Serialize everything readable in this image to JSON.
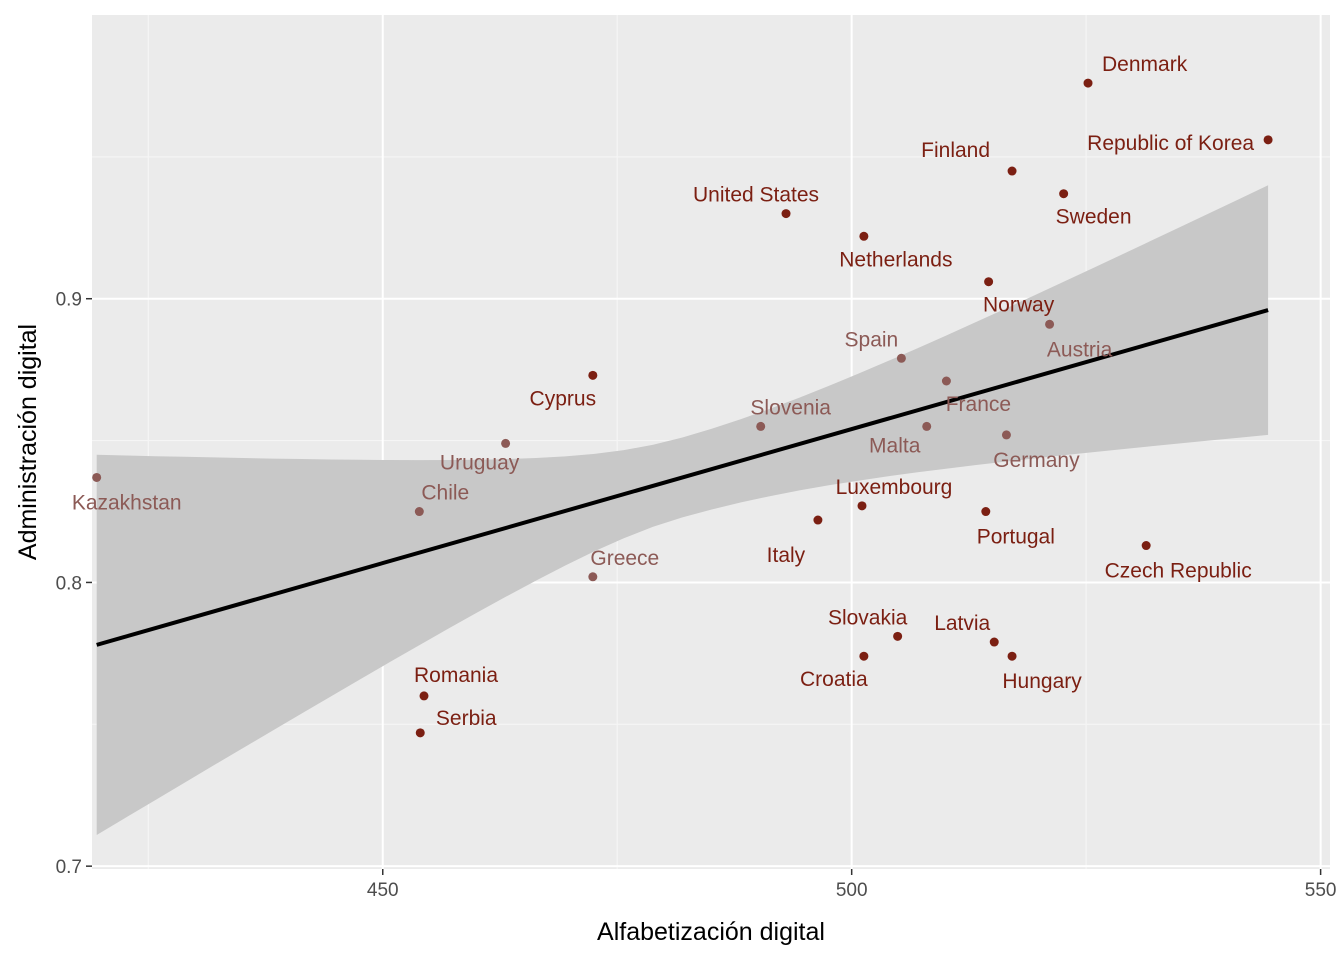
{
  "chart_data": {
    "type": "scatter",
    "title": "",
    "xlabel": "Alfabetización digital",
    "ylabel": "Administración digital",
    "xlim": [
      419,
      551
    ],
    "ylim": [
      0.699,
      1.0
    ],
    "x_ticks": [
      450,
      500,
      550
    ],
    "y_ticks": [
      0.7,
      0.8,
      0.9
    ],
    "x_tick_labels": [
      "450",
      "500",
      "550"
    ],
    "y_tick_labels": [
      "0.7",
      "0.8",
      "0.9"
    ],
    "grid": true,
    "legend": "none",
    "colors": {
      "panel": "#ebebeb",
      "grid_major": "#ffffff",
      "grid_minor": "#f5f5f5",
      "point_dark": "#7b1f12",
      "point_light": "#8c5a56",
      "label_dark": "#7b1f12",
      "label_light": "#8c5a56",
      "ribbon": "#c8c8c8",
      "trend": "#000000"
    },
    "points": [
      {
        "name": "Denmark",
        "x": 525.2,
        "y": 0.976,
        "shade": "dark"
      },
      {
        "name": "Republic of Korea",
        "x": 544.4,
        "y": 0.956,
        "shade": "dark"
      },
      {
        "name": "Finland",
        "x": 517.1,
        "y": 0.945,
        "shade": "dark"
      },
      {
        "name": "Sweden",
        "x": 522.6,
        "y": 0.937,
        "shade": "dark"
      },
      {
        "name": "United States",
        "x": 493.0,
        "y": 0.93,
        "shade": "dark"
      },
      {
        "name": "Netherlands",
        "x": 501.3,
        "y": 0.922,
        "shade": "dark"
      },
      {
        "name": "Norway",
        "x": 514.6,
        "y": 0.906,
        "shade": "dark"
      },
      {
        "name": "Austria",
        "x": 521.1,
        "y": 0.891,
        "shade": "light"
      },
      {
        "name": "Spain",
        "x": 505.3,
        "y": 0.879,
        "shade": "light"
      },
      {
        "name": "Cyprus",
        "x": 472.4,
        "y": 0.873,
        "shade": "dark"
      },
      {
        "name": "France",
        "x": 510.1,
        "y": 0.871,
        "shade": "light"
      },
      {
        "name": "Slovenia",
        "x": 490.3,
        "y": 0.855,
        "shade": "light"
      },
      {
        "name": "Malta",
        "x": 508.0,
        "y": 0.855,
        "shade": "light"
      },
      {
        "name": "Germany",
        "x": 516.5,
        "y": 0.852,
        "shade": "light"
      },
      {
        "name": "Uruguay",
        "x": 463.1,
        "y": 0.849,
        "shade": "light"
      },
      {
        "name": "Kazakhstan",
        "x": 419.5,
        "y": 0.837,
        "shade": "light"
      },
      {
        "name": "Luxembourg",
        "x": 501.1,
        "y": 0.827,
        "shade": "dark"
      },
      {
        "name": "Chile",
        "x": 453.9,
        "y": 0.825,
        "shade": "light"
      },
      {
        "name": "Portugal",
        "x": 514.3,
        "y": 0.825,
        "shade": "dark"
      },
      {
        "name": "Italy",
        "x": 496.4,
        "y": 0.822,
        "shade": "dark"
      },
      {
        "name": "Czech Republic",
        "x": 531.4,
        "y": 0.813,
        "shade": "dark"
      },
      {
        "name": "Greece",
        "x": 472.4,
        "y": 0.802,
        "shade": "light"
      },
      {
        "name": "Slovakia",
        "x": 504.9,
        "y": 0.781,
        "shade": "dark"
      },
      {
        "name": "Latvia",
        "x": 515.2,
        "y": 0.779,
        "shade": "dark"
      },
      {
        "name": "Croatia",
        "x": 501.3,
        "y": 0.774,
        "shade": "dark"
      },
      {
        "name": "Hungary",
        "x": 517.1,
        "y": 0.774,
        "shade": "dark"
      },
      {
        "name": "Romania",
        "x": 454.4,
        "y": 0.76,
        "shade": "dark"
      },
      {
        "name": "Serbia",
        "x": 454.0,
        "y": 0.747,
        "shade": "dark"
      }
    ],
    "trend": {
      "x": [
        419.5,
        544.4
      ],
      "y": [
        0.778,
        0.896
      ],
      "ci_lower": [
        0.711,
        0.852
      ],
      "ci_upper": [
        0.845,
        0.94
      ]
    }
  }
}
